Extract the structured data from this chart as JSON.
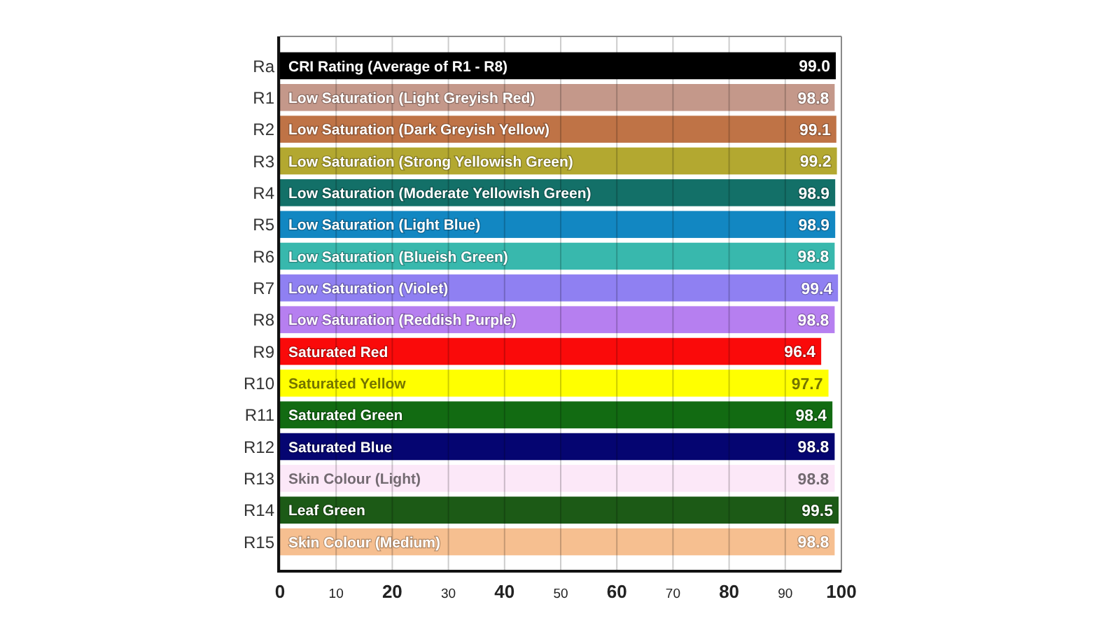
{
  "chart_data": {
    "type": "bar",
    "orientation": "horizontal",
    "categories": [
      "Ra",
      "R1",
      "R2",
      "R3",
      "R4",
      "R5",
      "R6",
      "R7",
      "R8",
      "R9",
      "R10",
      "R11",
      "R12",
      "R13",
      "R14",
      "R15"
    ],
    "values": [
      99.0,
      98.8,
      99.1,
      99.2,
      98.9,
      98.9,
      98.8,
      99.4,
      98.8,
      96.4,
      97.7,
      98.4,
      98.8,
      98.8,
      99.5,
      98.8
    ],
    "colors": [
      "#000000",
      "#c4988a",
      "#bf7346",
      "#b3a830",
      "#137068",
      "#1287c2",
      "#38b8ad",
      "#8f80f2",
      "#b67ff0",
      "#fa0a0a",
      "#ffff00",
      "#126b12",
      "#050571",
      "#fce8f8",
      "#1c5a16",
      "#f6bf90"
    ],
    "value_labels": [
      "99.0",
      "98.8",
      "99.1",
      "99.2",
      "98.9",
      "98.9",
      "98.8",
      "99.4",
      "98.8",
      "96.4",
      "97.7",
      "98.4",
      "98.8",
      "98.8",
      "99.5",
      "98.8"
    ],
    "xlim": [
      0,
      100
    ],
    "xticks": [
      0,
      10,
      20,
      30,
      40,
      50,
      60,
      70,
      80,
      90,
      100
    ],
    "grid": "x",
    "annotations": [
      {
        "text": "CRI Rating (Average of R1 - R8)",
        "y": "Ra"
      },
      {
        "text": "Low Saturation (Light Greyish Red)",
        "y": "R1"
      },
      {
        "text": "Low Saturation (Dark Greyish Yellow)",
        "y": "R2"
      },
      {
        "text": "Low Saturation (Strong Yellowish Green)",
        "y": "R3"
      },
      {
        "text": "Low Saturation (Moderate Yellowish Green)",
        "y": "R4"
      },
      {
        "text": "Low Saturation (Light Blue)",
        "y": "R5"
      },
      {
        "text": "Low Saturation (Blueish Green)",
        "y": "R6"
      },
      {
        "text": "Low Saturation (Violet)",
        "y": "R7"
      },
      {
        "text": "Low Saturation (Reddish Purple)",
        "y": "R8"
      },
      {
        "text": "Saturated Red",
        "y": "R9"
      },
      {
        "text": "Saturated Yellow",
        "y": "R10"
      },
      {
        "text": "Saturated Green",
        "y": "R11"
      },
      {
        "text": "Saturated Blue",
        "y": "R12"
      },
      {
        "text": "Skin Colour (Light)",
        "y": "R13"
      },
      {
        "text": "Leaf Green",
        "y": "R14"
      },
      {
        "text": "Skin Colour (Medium)",
        "y": "R15"
      }
    ]
  }
}
